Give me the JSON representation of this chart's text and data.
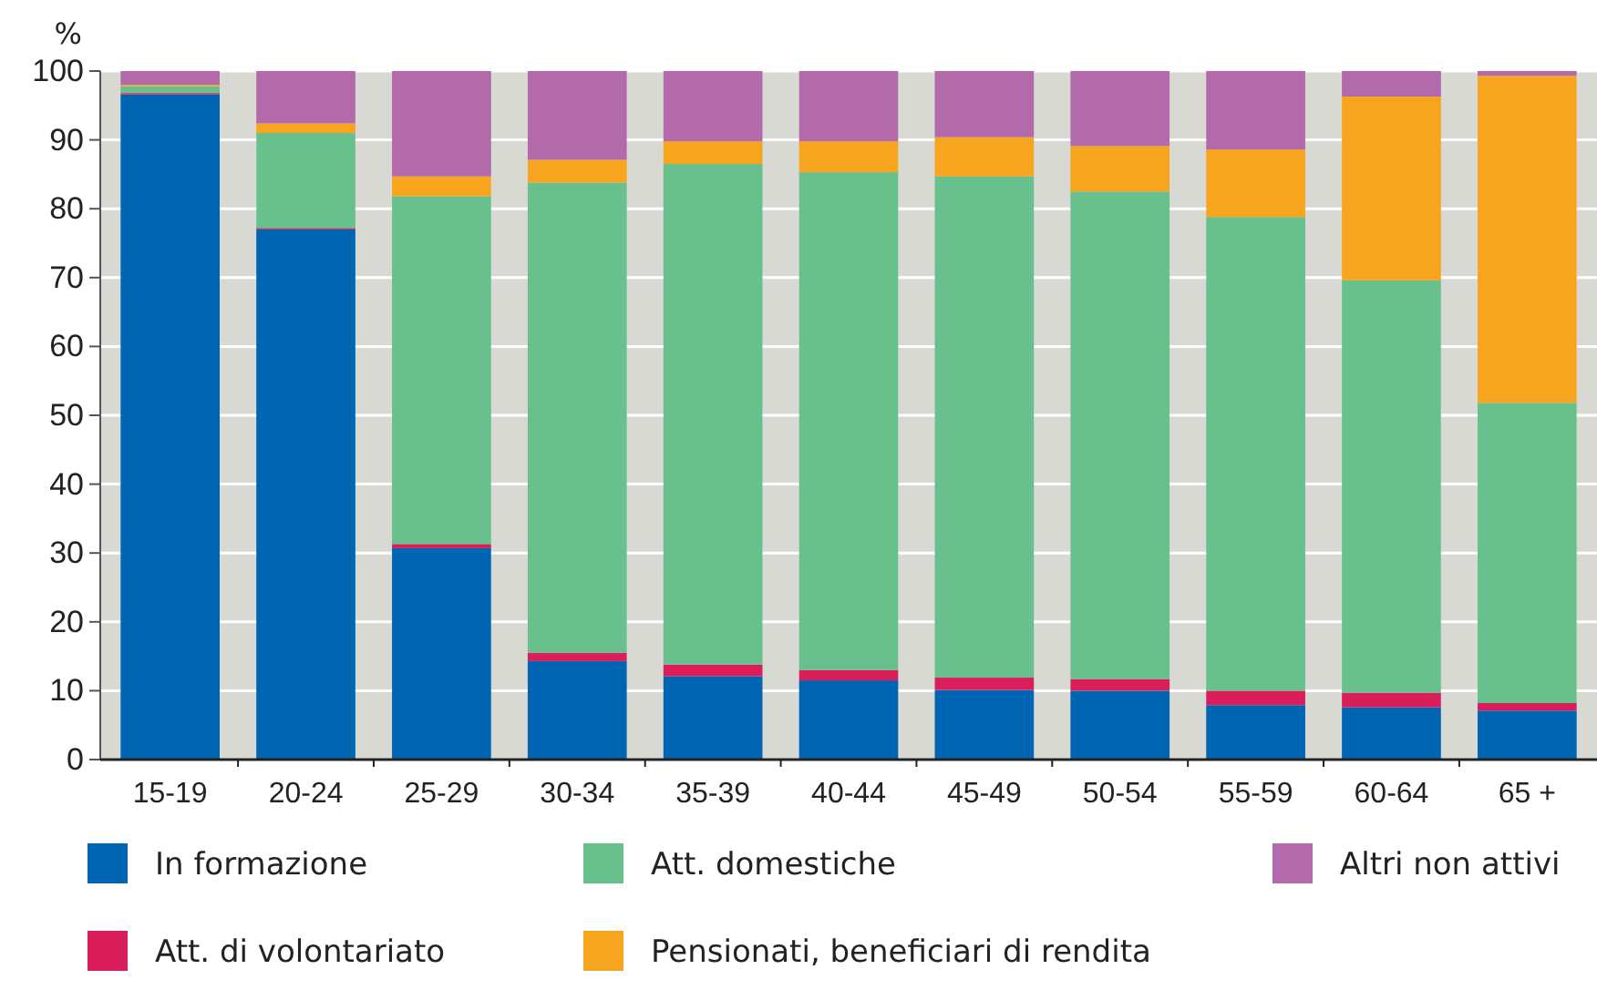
{
  "chart_data": {
    "type": "bar",
    "stacked": true,
    "ylabel": "%",
    "categories": [
      "15-19",
      "20-24",
      "25-29",
      "30-34",
      "35-39",
      "40-44",
      "45-49",
      "50-54",
      "55-59",
      "60-64",
      "65 +"
    ],
    "series": [
      {
        "name": "In formazione",
        "color": "#0066b3",
        "values": [
          96.6,
          77.0,
          30.7,
          14.3,
          12.1,
          11.5,
          10.1,
          10.0,
          7.9,
          7.6,
          7.1
        ]
      },
      {
        "name": "Att. di volontariato",
        "color": "#d91e5b",
        "values": [
          0.2,
          0.2,
          0.6,
          1.2,
          1.7,
          1.5,
          1.8,
          1.7,
          2.1,
          2.1,
          1.1
        ]
      },
      {
        "name": "Att. domestiche",
        "color": "#68c18d",
        "values": [
          1.0,
          13.8,
          50.5,
          68.3,
          72.7,
          72.3,
          72.8,
          70.8,
          68.8,
          59.9,
          43.6
        ]
      },
      {
        "name": "Pensionati, beneficiari di rendita",
        "color": "#f7a51e",
        "values": [
          0.2,
          1.4,
          2.9,
          3.3,
          3.3,
          4.5,
          5.7,
          6.6,
          9.8,
          26.7,
          47.5
        ]
      },
      {
        "name": "Altri non attivi",
        "color": "#b36aaa",
        "values": [
          2.0,
          7.6,
          15.3,
          12.9,
          10.2,
          10.2,
          9.6,
          10.9,
          11.4,
          3.7,
          0.7
        ]
      }
    ],
    "ylim": [
      0,
      100
    ],
    "yticks": [
      0,
      10,
      20,
      30,
      40,
      50,
      60,
      70,
      80,
      90,
      100
    ],
    "grid": "y",
    "legend": "bottom"
  }
}
